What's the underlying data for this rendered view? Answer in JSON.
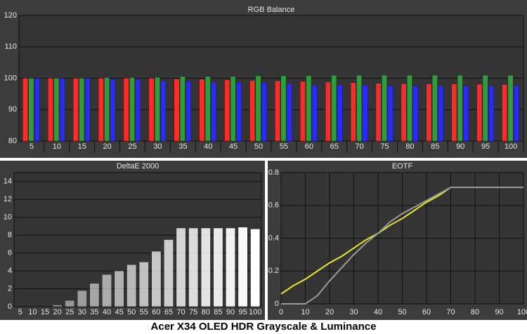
{
  "caption": "Acer X34 OLED HDR Grayscale & Luminance",
  "chart_data": [
    {
      "type": "bar",
      "title": "RGB Balance",
      "categories": [
        "5",
        "10",
        "15",
        "20",
        "25",
        "30",
        "35",
        "40",
        "45",
        "50",
        "55",
        "60",
        "65",
        "70",
        "75",
        "80",
        "85",
        "90",
        "95",
        "100"
      ],
      "series": [
        {
          "color": "#ff2a2a",
          "values": [
            100,
            100,
            100,
            100,
            100,
            100,
            99.8,
            99.7,
            99.5,
            99.3,
            99.2,
            99,
            98.8,
            98.6,
            98.4,
            98.3,
            98.2,
            98.2,
            98.1,
            98
          ]
        },
        {
          "color": "#2e9e3a",
          "values": [
            100,
            100,
            100,
            100.2,
            100.2,
            100.3,
            100.6,
            100.6,
            100.6,
            100.8,
            100.8,
            100.8,
            101,
            101,
            101,
            101,
            101,
            101,
            101,
            101
          ]
        },
        {
          "color": "#2a2aff",
          "values": [
            100,
            100,
            100,
            99.8,
            99.8,
            99.2,
            99,
            98.8,
            98.6,
            98.6,
            98.4,
            97.8,
            97.8,
            97.8,
            97.6,
            97.6,
            97.6,
            97.6,
            97.6,
            97.6
          ]
        }
      ],
      "ylim": [
        80,
        120
      ],
      "yticks": [
        80,
        90,
        100,
        110,
        120
      ],
      "grid": true
    },
    {
      "type": "bar",
      "title": "DeltaE 2000",
      "categories": [
        "5",
        "10",
        "15",
        "20",
        "25",
        "30",
        "35",
        "40",
        "45",
        "50",
        "55",
        "60",
        "65",
        "70",
        "75",
        "80",
        "85",
        "90",
        "95",
        "100"
      ],
      "values": [
        0,
        0,
        0,
        0.2,
        0.7,
        1.8,
        2.6,
        3.6,
        4.0,
        4.7,
        5.0,
        6.2,
        7.5,
        8.8,
        8.8,
        8.8,
        8.8,
        8.8,
        8.9,
        8.7
      ],
      "color": "#ffffff",
      "ylim": [
        0,
        15
      ],
      "yticks": [
        0,
        2,
        4,
        6,
        8,
        10,
        12,
        14
      ],
      "grid": true
    },
    {
      "type": "line",
      "title": "EOTF",
      "x": [
        0,
        5,
        10,
        15,
        20,
        25,
        30,
        35,
        40,
        45,
        50,
        55,
        60,
        65,
        70,
        75,
        80,
        85,
        90,
        95,
        100
      ],
      "series": [
        {
          "color": "#e8e820",
          "values": [
            0.06,
            0.11,
            0.15,
            0.2,
            0.25,
            0.29,
            0.34,
            0.39,
            0.43,
            0.48,
            0.52,
            0.57,
            0.62,
            0.66,
            0.71,
            0.71,
            0.71,
            0.71,
            0.71,
            0.71,
            0.71
          ]
        },
        {
          "color": "#9a9a9a",
          "values": [
            0,
            0,
            0,
            0.05,
            0.14,
            0.22,
            0.3,
            0.37,
            0.43,
            0.5,
            0.55,
            0.59,
            0.63,
            0.67,
            0.71,
            0.71,
            0.71,
            0.71,
            0.71,
            0.71,
            0.71
          ]
        }
      ],
      "xlim": [
        0,
        100
      ],
      "xticks": [
        0,
        10,
        20,
        30,
        40,
        50,
        60,
        70,
        80,
        90,
        100
      ],
      "ylim": [
        0,
        0.8
      ],
      "yticks": [
        0,
        0.2,
        0.4,
        0.6,
        0.8
      ],
      "grid": true
    }
  ]
}
